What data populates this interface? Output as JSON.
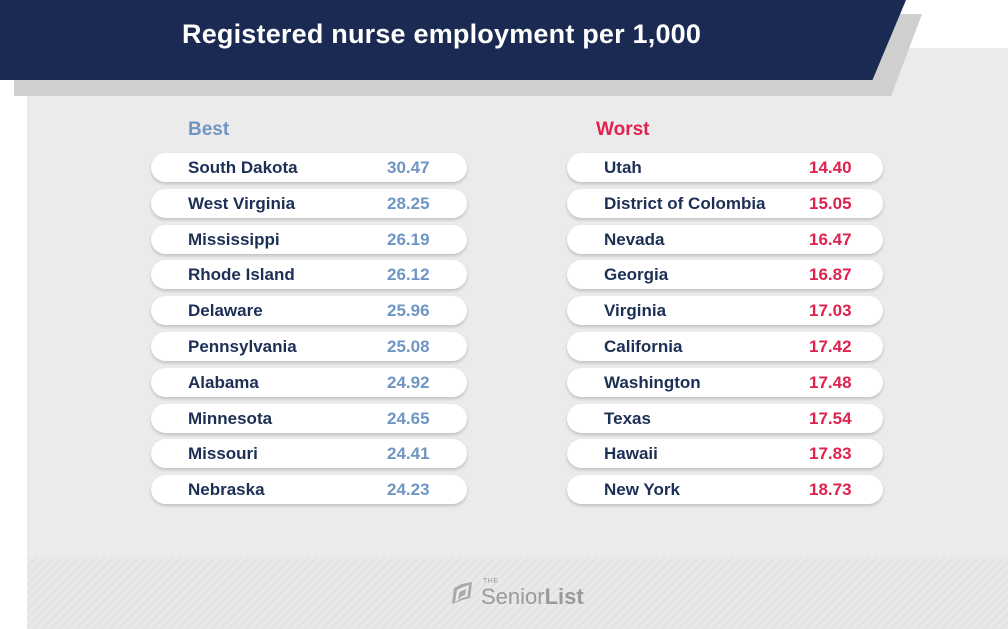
{
  "title": "Registered nurse employment per 1,000",
  "colors": {
    "navy": "#1b2a52",
    "best": "#6f95c4",
    "worst": "#e0224f",
    "text": "#1c2f54"
  },
  "best": {
    "heading": "Best",
    "items": [
      {
        "state": "South Dakota",
        "value": "30.47"
      },
      {
        "state": "West Virginia",
        "value": "28.25"
      },
      {
        "state": "Mississippi",
        "value": "26.19"
      },
      {
        "state": "Rhode Island",
        "value": "26.12"
      },
      {
        "state": "Delaware",
        "value": "25.96"
      },
      {
        "state": "Pennsylvania",
        "value": "25.08"
      },
      {
        "state": "Alabama",
        "value": "24.92"
      },
      {
        "state": "Minnesota",
        "value": "24.65"
      },
      {
        "state": "Missouri",
        "value": "24.41"
      },
      {
        "state": "Nebraska",
        "value": "24.23"
      }
    ]
  },
  "worst": {
    "heading": "Worst",
    "items": [
      {
        "state": "Utah",
        "value": "14.40"
      },
      {
        "state": "District of Colombia",
        "value": "15.05"
      },
      {
        "state": "Nevada",
        "value": "16.47"
      },
      {
        "state": "Georgia",
        "value": "16.87"
      },
      {
        "state": "Virginia",
        "value": "17.03"
      },
      {
        "state": "California",
        "value": "17.42"
      },
      {
        "state": "Washington",
        "value": "17.48"
      },
      {
        "state": "Texas",
        "value": "17.54"
      },
      {
        "state": "Hawaii",
        "value": "17.83"
      },
      {
        "state": "New York",
        "value": "18.73"
      }
    ]
  },
  "logo": {
    "the": "THE",
    "senior": "Senior",
    "list": "List",
    "icon": "senior-list-logo-icon"
  }
}
